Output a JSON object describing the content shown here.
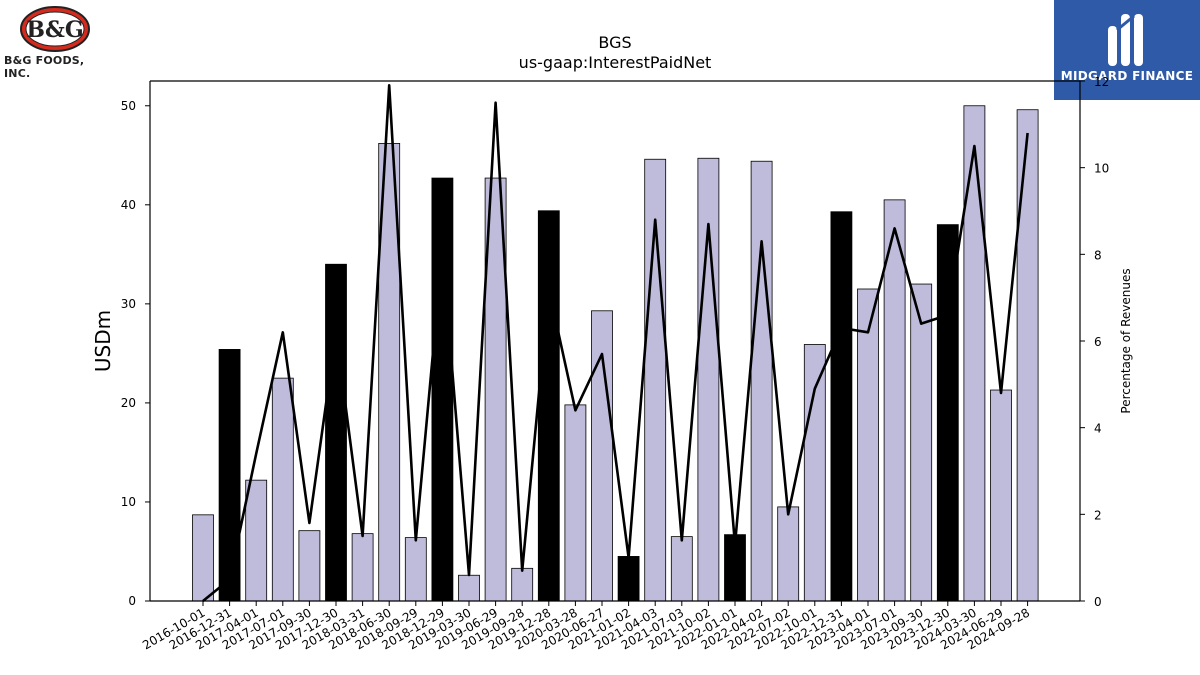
{
  "branding": {
    "left_logo_text": "B&G FOODS, INC.",
    "left_logo_mark": "B&G",
    "right_logo_text": "MIDGARD FINANCE"
  },
  "chart_data": {
    "type": "bar",
    "title": "BGS",
    "subtitle": "us-gaap:InterestPaidNet",
    "ylabel": "USDm",
    "y2label": "Percentage of Revenues",
    "ylim": [
      0,
      52.5
    ],
    "y2lim": [
      0,
      12.0
    ],
    "yticks": [
      0,
      10,
      20,
      30,
      40,
      50
    ],
    "y2ticks": [
      0,
      2,
      4,
      6,
      8,
      10,
      12
    ],
    "categories": [
      "2016-10-01",
      "2016-12-31",
      "2017-04-01",
      "2017-07-01",
      "2017-09-30",
      "2017-12-30",
      "2018-03-31",
      "2018-06-30",
      "2018-09-29",
      "2018-12-29",
      "2019-03-30",
      "2019-06-29",
      "2019-09-28",
      "2019-12-28",
      "2020-03-28",
      "2020-06-27",
      "2021-01-02",
      "2021-04-03",
      "2021-07-03",
      "2021-10-02",
      "2022-01-01",
      "2022-04-02",
      "2022-07-02",
      "2022-10-01",
      "2022-12-31",
      "2023-04-01",
      "2023-07-01",
      "2023-09-30",
      "2023-12-30",
      "2024-03-30",
      "2024-06-29",
      "2024-09-28"
    ],
    "series": [
      {
        "type": "bar",
        "values": [
          8.7,
          25.4,
          12.2,
          22.5,
          7.1,
          34.0,
          6.8,
          46.2,
          6.4,
          42.7,
          2.6,
          42.7,
          3.3,
          39.4,
          19.8,
          29.3,
          4.5,
          44.6,
          6.5,
          44.7,
          6.7,
          44.4,
          9.5,
          25.9,
          39.3,
          31.5,
          40.5,
          32.0,
          38.0,
          50.0,
          21.3,
          49.6
        ],
        "highlight": [
          false,
          true,
          false,
          false,
          false,
          true,
          false,
          false,
          false,
          true,
          false,
          false,
          false,
          true,
          false,
          false,
          true,
          false,
          false,
          false,
          true,
          false,
          false,
          false,
          true,
          false,
          false,
          false,
          true,
          false,
          false,
          false
        ],
        "color": "#bfbbdb",
        "highlight_color": "#000000"
      },
      {
        "type": "line",
        "axis": "right",
        "values": [
          0.0,
          0.5,
          3.4,
          6.2,
          1.8,
          6.2,
          1.5,
          11.9,
          1.4,
          8.1,
          0.6,
          11.5,
          0.7,
          7.2,
          4.4,
          5.7,
          1.0,
          8.8,
          1.4,
          8.7,
          1.3,
          8.3,
          2.0,
          4.9,
          6.3,
          6.2,
          8.6,
          6.4,
          6.6,
          10.5,
          4.8,
          10.8
        ],
        "color": "#000000"
      }
    ]
  }
}
